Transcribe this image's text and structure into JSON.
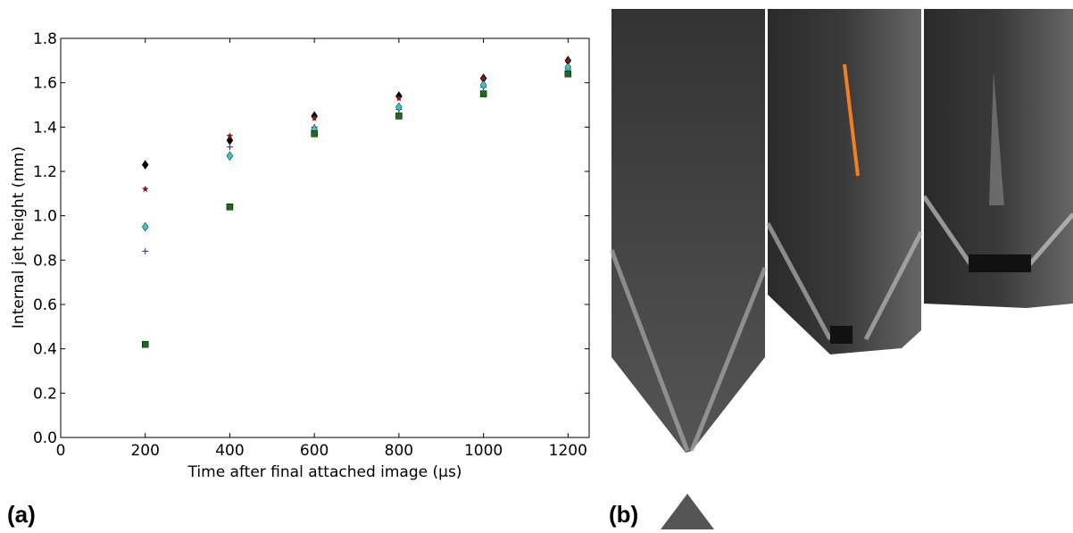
{
  "chart_data": {
    "type": "scatter",
    "xlabel": "Time after final attached image (μs)",
    "ylabel": "Internal jet height (mm)",
    "x": [
      200,
      400,
      600,
      800,
      1000,
      1200
    ],
    "series": [
      {
        "color": "#000000",
        "marker": "diamond",
        "values": [
          1.23,
          1.34,
          1.45,
          1.54,
          1.62,
          1.7
        ]
      },
      {
        "color": "#8b1a1a",
        "marker": "star",
        "values": [
          1.12,
          1.36,
          1.44,
          1.53,
          1.62,
          1.7
        ]
      },
      {
        "color": "#2a2a8a",
        "marker": "plus",
        "values": [
          0.84,
          1.31,
          1.4,
          1.48,
          1.58,
          1.66
        ]
      },
      {
        "color": "#33c6c6",
        "marker": "diamond",
        "values": [
          0.95,
          1.27,
          1.39,
          1.49,
          1.59,
          1.67
        ]
      },
      {
        "color": "#1b6b1b",
        "marker": "square",
        "values": [
          0.42,
          1.04,
          1.37,
          1.45,
          1.55,
          1.64
        ]
      }
    ],
    "xlim": [
      0,
      1250
    ],
    "xticks": [
      0,
      200,
      400,
      600,
      800,
      1000,
      1200
    ],
    "ylim": [
      0,
      1.8
    ],
    "yticks": [
      {
        "value": 0,
        "label": "0.0"
      },
      {
        "value": 0.2,
        "label": "0.2"
      },
      {
        "value": 0.4,
        "label": "0.4"
      },
      {
        "value": 0.6,
        "label": "0.6"
      },
      {
        "value": 0.8,
        "label": "0.8"
      },
      {
        "value": 1.0,
        "label": "1.0"
      },
      {
        "value": 1.2,
        "label": "1.2"
      },
      {
        "value": 1.4,
        "label": "1.4"
      },
      {
        "value": 1.6,
        "label": "1.6"
      },
      {
        "value": 1.8,
        "label": "1.8"
      }
    ]
  },
  "panel_labels": [
    "(a)",
    "(b)"
  ]
}
